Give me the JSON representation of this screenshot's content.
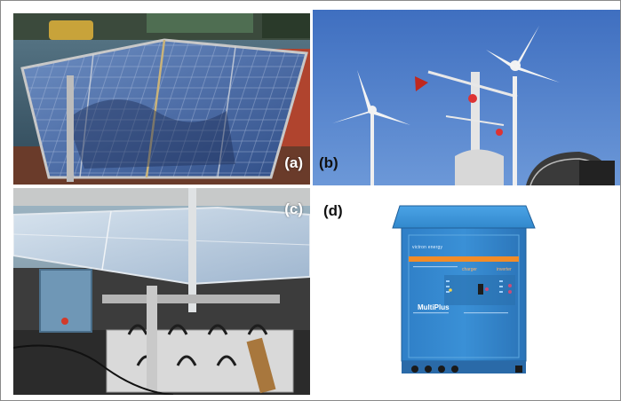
{
  "figure": {
    "panels": [
      {
        "id": "a",
        "label": "(a)",
        "subject": "solar panel array on ship deck"
      },
      {
        "id": "b",
        "label": "(b)",
        "subject": "wind turbines on ship mast"
      },
      {
        "id": "c",
        "label": "(c)",
        "subject": "solar panel over battery bank"
      },
      {
        "id": "d",
        "label": "(d)",
        "subject": "inverter/charger unit"
      }
    ],
    "device": {
      "brand": "victron energy",
      "model": "MultiPlus",
      "charger_label": "charger",
      "inverter_label": "inverter"
    }
  }
}
